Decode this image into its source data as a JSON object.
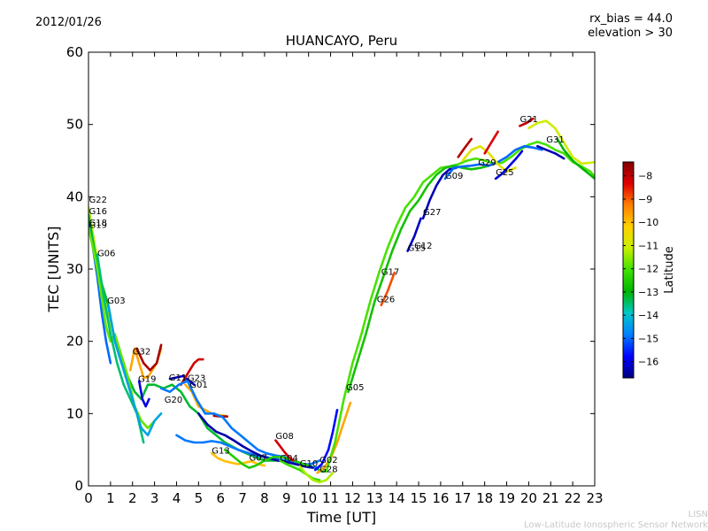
{
  "header": {
    "date": "2012/01/26",
    "title": "HUANCAYO, Peru",
    "rx_bias": "rx_bias = 44.0",
    "elevation": "elevation > 30"
  },
  "footer": {
    "credit_short": "LISN",
    "credit_long": "Low-Latitude Ionospheric Sensor Network"
  },
  "chart_data": {
    "type": "line",
    "title": "HUANCAYO, Peru",
    "xlabel": "Time [UT]",
    "ylabel": "TEC [UNITS]",
    "xlim": [
      0,
      23
    ],
    "ylim": [
      0,
      60
    ],
    "xticks": [
      0,
      1,
      2,
      3,
      4,
      5,
      6,
      7,
      8,
      9,
      10,
      11,
      12,
      13,
      14,
      15,
      16,
      17,
      18,
      19,
      20,
      21,
      22,
      23
    ],
    "yticks": [
      0,
      10,
      20,
      30,
      40,
      50,
      60
    ],
    "colorbar": {
      "label": "Latitude",
      "range": [
        -16.7,
        -7.4
      ],
      "ticks": [
        -8,
        -9,
        -10,
        -11,
        -12,
        -13,
        -14,
        -15,
        -16
      ],
      "colors": [
        "#00007f",
        "#0000ff",
        "#0080ff",
        "#00c8c8",
        "#00b400",
        "#40e000",
        "#c8f000",
        "#ffd000",
        "#ff8000",
        "#e00000",
        "#800000"
      ]
    },
    "satellites": [
      {
        "name": "G22",
        "x": 0.02,
        "y": 39.2
      },
      {
        "name": "G16",
        "x": 0.02,
        "y": 37.6
      },
      {
        "name": "G18",
        "x": 0.02,
        "y": 36.0
      },
      {
        "name": "G19",
        "x": 0.02,
        "y": 35.7
      },
      {
        "name": "G06",
        "x": 0.4,
        "y": 31.8
      },
      {
        "name": "G03",
        "x": 0.85,
        "y": 25.2
      },
      {
        "name": "G32",
        "x": 2.0,
        "y": 18.2
      },
      {
        "name": "G19",
        "x": 2.25,
        "y": 14.4
      },
      {
        "name": "G11",
        "x": 3.65,
        "y": 14.6
      },
      {
        "name": "G23",
        "x": 4.5,
        "y": 14.5
      },
      {
        "name": "G01",
        "x": 4.6,
        "y": 13.6
      },
      {
        "name": "G20",
        "x": 3.45,
        "y": 11.5
      },
      {
        "name": "G13",
        "x": 5.6,
        "y": 4.5
      },
      {
        "name": "G07",
        "x": 7.3,
        "y": 3.5
      },
      {
        "name": "G08",
        "x": 8.5,
        "y": 6.5
      },
      {
        "name": "G04",
        "x": 8.7,
        "y": 3.4
      },
      {
        "name": "G10",
        "x": 9.6,
        "y": 2.7
      },
      {
        "name": "G02",
        "x": 10.5,
        "y": 3.2
      },
      {
        "name": "G28",
        "x": 10.5,
        "y": 1.9
      },
      {
        "name": "G05",
        "x": 11.7,
        "y": 13.2
      },
      {
        "name": "G26",
        "x": 13.1,
        "y": 25.4
      },
      {
        "name": "G17",
        "x": 13.3,
        "y": 29.2
      },
      {
        "name": "G15",
        "x": 14.5,
        "y": 32.5
      },
      {
        "name": "G12",
        "x": 14.8,
        "y": 32.8
      },
      {
        "name": "G27",
        "x": 15.2,
        "y": 37.5
      },
      {
        "name": "G09",
        "x": 16.2,
        "y": 42.5
      },
      {
        "name": "G29",
        "x": 17.7,
        "y": 44.3
      },
      {
        "name": "G25",
        "x": 18.5,
        "y": 43.0
      },
      {
        "name": "G21",
        "x": 19.6,
        "y": 50.3
      },
      {
        "name": "G31",
        "x": 20.8,
        "y": 47.5
      }
    ],
    "series": [
      {
        "name": "G22",
        "lat": -11.3,
        "x": [
          0,
          0.3,
          0.6,
          0.9,
          1.2
        ],
        "y": [
          38.5,
          33,
          28,
          24,
          20
        ]
      },
      {
        "name": "G16",
        "lat": -13.2,
        "x": [
          0,
          0.3,
          0.6,
          0.9,
          1.2,
          1.5,
          1.8,
          2.1,
          2.4,
          2.7,
          3.0,
          3.4,
          3.8,
          4.2,
          4.6,
          5.0,
          5.4,
          5.8,
          6.2,
          6.8,
          7.4,
          8.0,
          8.6,
          9.2,
          9.8,
          10.3,
          10.6,
          10.8
        ],
        "y": [
          37.5,
          32,
          28,
          25,
          20,
          17,
          15,
          13,
          12,
          14,
          14,
          13.5,
          14,
          13,
          11,
          10,
          8,
          7,
          6,
          5,
          4.2,
          3.5,
          3.5,
          3.5,
          3,
          2.5,
          2,
          2
        ]
      },
      {
        "name": "G18",
        "lat": -15.0,
        "x": [
          0,
          0.2,
          0.4,
          0.6,
          0.8,
          1.0
        ],
        "y": [
          36,
          33,
          29,
          24,
          20,
          17
        ]
      },
      {
        "name": "G19",
        "lat": -11.8,
        "x": [
          0,
          0.2,
          0.4,
          0.6,
          0.8,
          1.0,
          1.2,
          1.5,
          1.8,
          2.1,
          2.4,
          2.7,
          3.0
        ],
        "y": [
          35.7,
          33,
          30,
          26,
          22,
          20,
          21,
          18,
          15,
          11,
          9,
          8,
          9
        ]
      },
      {
        "name": "G06",
        "lat": -13.5,
        "x": [
          0.4,
          0.7,
          1.0,
          1.3,
          1.6,
          1.9,
          2.2,
          2.5
        ],
        "y": [
          32,
          26,
          21,
          17,
          14,
          12,
          10,
          6
        ]
      },
      {
        "name": "G03",
        "lat": -14.4,
        "x": [
          0.9,
          1.2,
          1.5,
          1.8,
          2.1,
          2.4,
          2.7,
          3.0,
          3.3
        ],
        "y": [
          25,
          20,
          17,
          14,
          11,
          8,
          7,
          9,
          10
        ]
      },
      {
        "name": "G32",
        "lat": -9.7,
        "x": [
          1.9,
          2.1,
          2.3,
          2.5,
          2.7,
          2.9,
          3.1,
          3.3
        ],
        "y": [
          16,
          19,
          17,
          15,
          15,
          16,
          17,
          19
        ]
      },
      {
        "name": "G32b",
        "lat": -7.8,
        "x": [
          2.2,
          2.5,
          2.8,
          3.1,
          3.3
        ],
        "y": [
          19,
          17,
          16,
          17,
          19.5
        ]
      },
      {
        "name": "G19b",
        "lat": -16.0,
        "x": [
          2.3,
          2.45,
          2.6,
          2.75
        ],
        "y": [
          14.5,
          12,
          11,
          12
        ]
      },
      {
        "name": "G11",
        "lat": -16.1,
        "x": [
          3.7,
          4.0,
          4.3,
          4.6,
          4.8
        ],
        "y": [
          14.8,
          15,
          15.2,
          14.5,
          14
        ]
      },
      {
        "name": "G23",
        "lat": -8.2,
        "x": [
          4.2,
          4.5,
          4.8,
          5.0,
          5.2
        ],
        "y": [
          14,
          15.5,
          17,
          17.5,
          17.5
        ]
      },
      {
        "name": "G01",
        "lat": -9.8,
        "x": [
          4.4,
          4.7,
          5.0,
          5.3,
          5.6,
          5.9,
          6.2
        ],
        "y": [
          14,
          13,
          11,
          10.5,
          10,
          9.8,
          9.7
        ]
      },
      {
        "name": "G01b",
        "lat": -7.9,
        "x": [
          5.7,
          6.0,
          6.3
        ],
        "y": [
          9.7,
          9.6,
          9.6
        ]
      },
      {
        "name": "G20",
        "lat": -14.9,
        "x": [
          3.3,
          3.7,
          4.1,
          4.5,
          4.9,
          5.3,
          5.7,
          6.1,
          6.5,
          6.9,
          7.3,
          7.7,
          8.1,
          8.5,
          8.9,
          9.3,
          9.7,
          10.1,
          10.5
        ],
        "y": [
          13.5,
          13,
          14,
          14.5,
          12,
          10,
          10,
          9.5,
          8,
          7,
          6,
          5,
          4.5,
          4.2,
          4,
          3.5,
          3,
          3,
          3.5
        ]
      },
      {
        "name": "G13",
        "lat": -14.9,
        "x": [
          4.0,
          4.4,
          4.8,
          5.2,
          5.6,
          6.0,
          6.4,
          6.8,
          7.2,
          7.6,
          8.0,
          8.4,
          8.8,
          9.2,
          9.6,
          10.0,
          10.4
        ],
        "y": [
          7,
          6.3,
          6,
          6,
          6.2,
          6,
          5.5,
          5,
          4.6,
          4.2,
          4,
          3.8,
          3.6,
          3.4,
          3,
          2.6,
          2.5
        ]
      },
      {
        "name": "G13b",
        "lat": -10.0,
        "x": [
          5.6,
          5.9,
          6.2,
          6.5,
          6.8,
          7.1,
          7.4,
          7.7,
          8.0
        ],
        "y": [
          4.5,
          3.8,
          3.4,
          3.2,
          3.0,
          3.2,
          3.4,
          3.0,
          2.8
        ]
      },
      {
        "name": "G14",
        "lat": -16.4,
        "x": [
          5.0,
          5.4,
          5.8,
          6.2,
          6.6,
          7.0,
          7.4,
          7.8,
          8.2,
          8.6,
          9.0,
          9.4,
          9.8,
          10.2
        ],
        "y": [
          10,
          8.5,
          7.5,
          7,
          6.3,
          5.5,
          4.8,
          4.2,
          3.8,
          3.5,
          3.3,
          3,
          2.7,
          2.5
        ]
      },
      {
        "name": "G07",
        "lat": -12.5,
        "x": [
          6.2,
          6.6,
          7.0,
          7.3,
          7.6,
          8.0,
          8.4,
          8.8,
          9.2,
          9.6,
          10.0
        ],
        "y": [
          5,
          4,
          3,
          2.5,
          2.8,
          3.5,
          4,
          4,
          3.6,
          3.2,
          2.8
        ]
      },
      {
        "name": "G08",
        "lat": -8.2,
        "x": [
          8.5,
          8.7,
          8.9,
          9.1,
          9.3
        ],
        "y": [
          6.3,
          5.5,
          4.7,
          4.0,
          3.5
        ]
      },
      {
        "name": "G04",
        "lat": -12.2,
        "x": [
          8.7,
          9.0,
          9.3,
          9.6,
          9.9,
          10.2,
          10.5
        ],
        "y": [
          3.5,
          3,
          2.6,
          2.2,
          1.6,
          1.0,
          0.8
        ]
      },
      {
        "name": "G10",
        "lat": -11.3,
        "x": [
          9.6,
          9.9,
          10.2,
          10.5,
          10.8,
          11.1
        ],
        "y": [
          2.7,
          1.6,
          0.8,
          0.5,
          0.8,
          1.8
        ]
      },
      {
        "name": "G02",
        "lat": -15.7,
        "x": [
          10.3,
          10.6,
          10.9,
          11.1,
          11.3
        ],
        "y": [
          2.2,
          3,
          5,
          7.5,
          10.5
        ]
      },
      {
        "name": "G28",
        "lat": -9.7,
        "x": [
          10.4,
          10.7,
          11.0,
          11.3,
          11.6,
          11.9
        ],
        "y": [
          1.8,
          2.5,
          3.8,
          6,
          8.8,
          11.5
        ]
      },
      {
        "name": "G05",
        "lat": -12.0,
        "x": [
          10.8,
          11.2,
          11.6,
          12.0,
          12.4,
          12.8,
          13.2,
          13.6,
          14.0,
          14.4,
          14.8,
          15.2,
          15.6,
          16.0,
          16.4,
          16.8,
          17.2,
          17.6,
          18.0,
          18.4,
          18.8,
          19.2,
          19.6,
          20.0,
          20.4,
          20.8,
          21.2,
          21.6,
          22.0,
          22.4,
          22.8,
          23.0
        ],
        "y": [
          2,
          6,
          12,
          17,
          21,
          25.5,
          29.5,
          33,
          36,
          38.5,
          40,
          42,
          43,
          44,
          44.2,
          44.5,
          45,
          45.3,
          45,
          44.6,
          44.7,
          45.5,
          46.5,
          47.2,
          47.6,
          47.2,
          46.5,
          46,
          44.8,
          44.2,
          43.5,
          42.8
        ]
      },
      {
        "name": "G26",
        "lat": -12.7,
        "x": [
          11.8,
          12.2,
          12.6,
          13.0,
          13.4,
          13.8,
          14.2,
          14.6,
          15.0,
          15.4,
          15.8,
          16.2,
          16.6,
          17.0,
          17.4,
          17.8,
          18.2
        ],
        "y": [
          13,
          17,
          21,
          25.5,
          29,
          32.5,
          35.5,
          38,
          39.5,
          41.5,
          43,
          44,
          44.3,
          44,
          43.8,
          44,
          44.3
        ]
      },
      {
        "name": "G17",
        "lat": -8.9,
        "x": [
          13.3,
          13.6,
          13.9
        ],
        "y": [
          25,
          27,
          29.5
        ]
      },
      {
        "name": "G15",
        "lat": -16.2,
        "x": [
          14.5,
          14.8,
          15.1
        ],
        "y": [
          32.5,
          34.5,
          37
        ]
      },
      {
        "name": "G27",
        "lat": -16.3,
        "x": [
          15.2,
          15.5,
          15.8,
          16.1,
          16.4,
          16.7
        ],
        "y": [
          37,
          39.5,
          41.5,
          43,
          43.8,
          44
        ]
      },
      {
        "name": "G09",
        "lat": -15.0,
        "x": [
          16.2,
          16.6,
          17.0,
          17.4,
          17.8,
          18.2,
          18.6,
          19.0,
          19.4,
          19.8,
          20.2,
          20.6
        ],
        "y": [
          42.5,
          44,
          44.2,
          44.3,
          44.5,
          44.3,
          44.8,
          45.5,
          46.5,
          47,
          46.8,
          46.5
        ]
      },
      {
        "name": "G29",
        "lat": -10.7,
        "x": [
          17.0,
          17.4,
          17.8,
          18.2,
          18.6,
          19.0,
          19.4
        ],
        "y": [
          45,
          46.5,
          47,
          46,
          44.5,
          43.5,
          44
        ]
      },
      {
        "name": "G29b",
        "lat": -7.9,
        "x": [
          16.8,
          17.1,
          17.4
        ],
        "y": [
          45.5,
          46.8,
          48
        ]
      },
      {
        "name": "G25",
        "lat": -16.0,
        "x": [
          18.5,
          18.8,
          19.1,
          19.4,
          19.7
        ],
        "y": [
          42.5,
          43.2,
          44.2,
          45.2,
          46.3
        ]
      },
      {
        "name": "G25b",
        "lat": -8.3,
        "x": [
          18.0,
          18.3,
          18.6
        ],
        "y": [
          46,
          47.5,
          49
        ]
      },
      {
        "name": "G21",
        "lat": -8.0,
        "x": [
          19.6,
          19.9,
          20.2
        ],
        "y": [
          49.8,
          50.2,
          50.8
        ]
      },
      {
        "name": "G21b",
        "lat": -11.0,
        "x": [
          20.0,
          20.4,
          20.8,
          21.2,
          21.6,
          22.0,
          22.4,
          22.8,
          23.0
        ],
        "y": [
          49.5,
          50.2,
          50.5,
          49.5,
          47.5,
          45.5,
          44.6,
          44.7,
          44.8
        ]
      },
      {
        "name": "G31",
        "lat": -16.3,
        "x": [
          20.4,
          20.8,
          21.2,
          21.6
        ],
        "y": [
          47,
          46.5,
          46,
          45.3
        ]
      },
      {
        "name": "G31b",
        "lat": -13.0,
        "x": [
          21.3,
          21.6,
          22.0,
          22.4,
          22.8,
          23.0
        ],
        "y": [
          48,
          46.5,
          45,
          44,
          43,
          42.5
        ]
      }
    ]
  }
}
